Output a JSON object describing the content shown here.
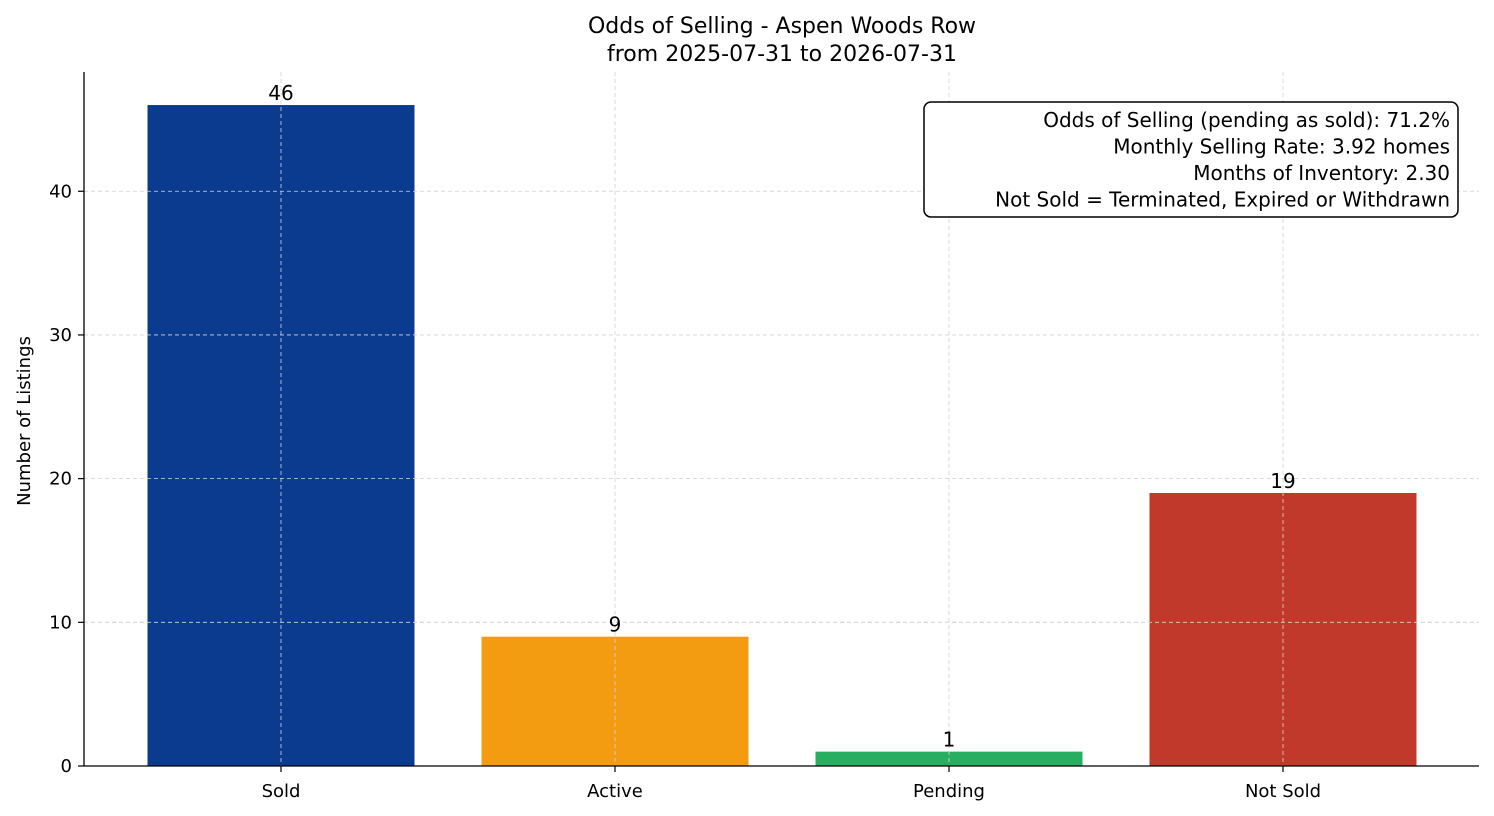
{
  "chart_data": {
    "type": "bar",
    "title": "Odds of Selling - Aspen Woods Row",
    "subtitle": "from 2025-07-31 to 2026-07-31",
    "xlabel": "",
    "ylabel": "Number of Listings",
    "ylim": [
      0,
      48.3
    ],
    "yticks": [
      0,
      10,
      20,
      30,
      40
    ],
    "grid": true,
    "categories": [
      "Sold",
      "Active",
      "Pending",
      "Not Sold"
    ],
    "values": [
      46,
      9,
      1,
      19
    ],
    "colors": [
      "#0b3b8f",
      "#f39c12",
      "#27ae60",
      "#c0392b"
    ],
    "annotations": [
      "Odds of Selling (pending as sold): 71.2%",
      "Monthly Selling Rate: 3.92 homes",
      "Months of Inventory: 2.30",
      "Not Sold = Terminated, Expired or Withdrawn"
    ]
  }
}
